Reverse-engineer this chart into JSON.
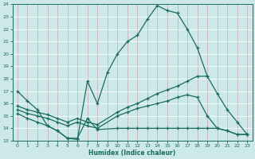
{
  "xlabel": "Humidex (Indice chaleur)",
  "xlim": [
    -0.5,
    23.5
  ],
  "ylim": [
    13,
    24
  ],
  "xticks": [
    0,
    1,
    2,
    3,
    4,
    5,
    6,
    7,
    8,
    9,
    10,
    11,
    12,
    13,
    14,
    15,
    16,
    17,
    18,
    19,
    20,
    21,
    22,
    23
  ],
  "yticks": [
    13,
    14,
    15,
    16,
    17,
    18,
    19,
    20,
    21,
    22,
    23,
    24
  ],
  "bg_color": "#cde8e8",
  "line_color": "#1a6b5e",
  "grid_color": "#b8d8d8",
  "curve1_x": [
    0,
    1,
    2,
    3,
    4,
    5,
    6,
    7,
    8,
    9,
    10,
    11,
    12,
    13,
    14,
    15,
    16,
    17,
    18,
    19
  ],
  "curve1_y": [
    17.0,
    16.2,
    15.5,
    14.2,
    13.8,
    13.2,
    13.1,
    17.8,
    16.0,
    18.5,
    20.0,
    21.0,
    21.5,
    22.8,
    23.9,
    23.5,
    23.3,
    22.0,
    20.5,
    18.2
  ],
  "curve2_x": [
    0,
    1,
    2,
    3,
    4,
    5,
    6,
    7,
    8,
    10,
    11,
    12,
    13,
    14,
    15,
    16,
    17,
    18,
    19,
    20,
    21,
    22,
    23
  ],
  "curve2_y": [
    15.8,
    15.5,
    15.3,
    15.1,
    14.8,
    14.5,
    14.8,
    14.5,
    14.3,
    15.3,
    15.7,
    16.0,
    16.4,
    16.8,
    17.1,
    17.4,
    17.8,
    18.2,
    18.2,
    16.8,
    15.5,
    14.5,
    13.5
  ],
  "curve3_x": [
    0,
    1,
    2,
    3,
    4,
    5,
    6,
    7,
    8,
    10,
    11,
    12,
    13,
    14,
    15,
    16,
    17,
    18,
    19,
    20,
    21,
    22,
    23
  ],
  "curve3_y": [
    15.5,
    15.2,
    15.0,
    14.8,
    14.5,
    14.2,
    14.5,
    14.2,
    14.0,
    15.0,
    15.3,
    15.6,
    15.8,
    16.0,
    16.2,
    16.5,
    16.7,
    16.5,
    15.0,
    14.0,
    13.8,
    13.5,
    13.5
  ],
  "curve4_x": [
    0,
    1,
    2,
    3,
    4,
    5,
    6,
    7,
    8,
    10,
    11,
    12,
    13,
    14,
    15,
    16,
    17,
    18,
    19,
    20,
    21,
    22,
    23
  ],
  "curve4_y": [
    15.2,
    14.8,
    14.5,
    14.2,
    13.8,
    13.2,
    13.2,
    14.8,
    13.9,
    14.0,
    14.0,
    14.0,
    14.0,
    14.0,
    14.0,
    14.0,
    14.0,
    14.0,
    14.0,
    14.0,
    13.8,
    13.5,
    13.5
  ]
}
